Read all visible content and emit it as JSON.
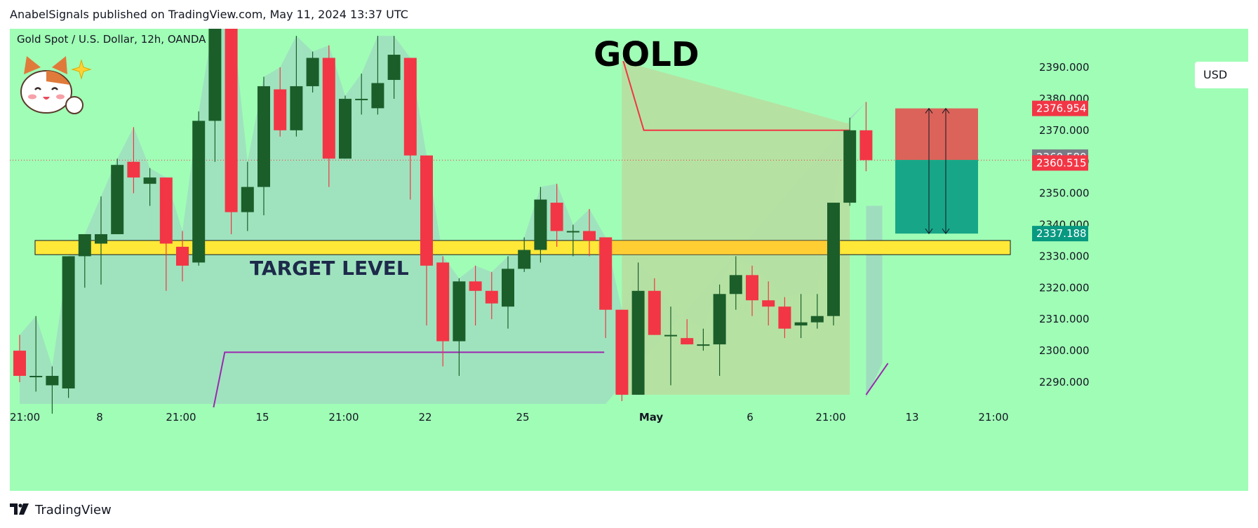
{
  "header": {
    "text": "AnabelSignals published on TradingView.com, May 11, 2024 13:37 UTC"
  },
  "footer": {
    "brand": "TradingView",
    "logo_icon": "tradingview-logo-icon"
  },
  "chart_data": {
    "type": "candlestick",
    "symbol_label": "Gold Spot / U.S. Dollar, 12h, OANDA",
    "title": "GOLD",
    "currency": "USD",
    "colors": {
      "background": "#a0fdb6",
      "up": "#1c5e2a",
      "down": "#f23645",
      "target_band": "#ffe838",
      "stop_zone": "#e1524f",
      "take_zone": "#17a688",
      "purple_line": "#9c27b0",
      "red_line": "#f23645"
    },
    "price_axis": {
      "min": 2283,
      "max": 2400,
      "ticks": [
        "2390.000",
        "2380.000",
        "2370.000",
        "2360.000",
        "2350.000",
        "2340.000",
        "2330.000",
        "2320.000",
        "2310.000",
        "2300.000",
        "2290.000"
      ]
    },
    "time_axis_labels": [
      "21:00",
      "8",
      "21:00",
      "15",
      "21:00",
      "22",
      "25",
      "May",
      "6",
      "21:00",
      "13",
      "21:00"
    ],
    "price_labels": [
      {
        "value": "2376.954",
        "color": "#f23645"
      },
      {
        "value": "2360.580",
        "color": "#787b86"
      },
      {
        "value": "2360.515",
        "color": "#f23645"
      },
      {
        "value": "2337.188",
        "color": "#089981"
      }
    ],
    "target_level": {
      "label": "TARGET LEVEL",
      "low": 2330.5,
      "high": 2335
    },
    "candles": [
      [
        2300,
        2292,
        2305,
        2290
      ],
      [
        2292,
        2292,
        2311,
        2287
      ],
      [
        2289,
        2292,
        2295,
        2280
      ],
      [
        2288,
        2330,
        2330,
        2285
      ],
      [
        2330,
        2337,
        2337,
        2320
      ],
      [
        2334,
        2337,
        2349,
        2321
      ],
      [
        2337,
        2359,
        2361,
        2337
      ],
      [
        2360,
        2355,
        2371,
        2350
      ],
      [
        2353,
        2355,
        2358,
        2346
      ],
      [
        2355,
        2334,
        2355,
        2319
      ],
      [
        2333,
        2327,
        2338,
        2322
      ],
      [
        2328,
        2373,
        2376,
        2327
      ],
      [
        2373,
        2407,
        2407,
        2360
      ],
      [
        2409,
        2344,
        2409,
        2337
      ],
      [
        2344,
        2352,
        2360,
        2338
      ],
      [
        2352,
        2384,
        2387,
        2343
      ],
      [
        2383,
        2370,
        2390,
        2368
      ],
      [
        2370,
        2384,
        2400,
        2368
      ],
      [
        2384,
        2393,
        2395,
        2382
      ],
      [
        2393,
        2361,
        2397,
        2352
      ],
      [
        2361,
        2380,
        2381,
        2361
      ],
      [
        2380,
        2380,
        2388,
        2375
      ],
      [
        2377,
        2385,
        2400,
        2375
      ],
      [
        2386,
        2394,
        2400,
        2380
      ],
      [
        2393,
        2362,
        2393,
        2348
      ],
      [
        2362,
        2327,
        2362,
        2308
      ],
      [
        2328,
        2303,
        2330,
        2295
      ],
      [
        2303,
        2322,
        2323,
        2292
      ],
      [
        2322,
        2319,
        2327,
        2308
      ],
      [
        2319,
        2315,
        2325,
        2310
      ],
      [
        2314,
        2326,
        2330,
        2307
      ],
      [
        2326,
        2332,
        2336,
        2325
      ],
      [
        2332,
        2348,
        2352,
        2328
      ],
      [
        2347,
        2338,
        2353,
        2333
      ],
      [
        2338,
        2338,
        2340,
        2330
      ],
      [
        2338,
        2335,
        2345,
        2330
      ],
      [
        2336,
        2313,
        2336,
        2304
      ],
      [
        2313,
        2286,
        2313,
        2284
      ],
      [
        2286,
        2319,
        2328,
        2286
      ],
      [
        2319,
        2305,
        2323,
        2305
      ],
      [
        2305,
        2305,
        2314,
        2289
      ],
      [
        2304,
        2302,
        2310,
        2302
      ],
      [
        2302,
        2302,
        2307,
        2300
      ],
      [
        2302,
        2318,
        2321,
        2292
      ],
      [
        2318,
        2324,
        2330,
        2313
      ],
      [
        2324,
        2316,
        2327,
        2311
      ],
      [
        2316,
        2314,
        2322,
        2308
      ],
      [
        2314,
        2307,
        2317,
        2304
      ],
      [
        2308,
        2309,
        2318,
        2304
      ],
      [
        2309,
        2311,
        2318,
        2307
      ],
      [
        2311,
        2347,
        2347,
        2308
      ],
      [
        2347,
        2370,
        2374,
        2346
      ],
      [
        2370,
        2360.5,
        2379,
        2357
      ]
    ],
    "annotations": [
      "GOLD",
      "TARGET LEVEL"
    ]
  }
}
